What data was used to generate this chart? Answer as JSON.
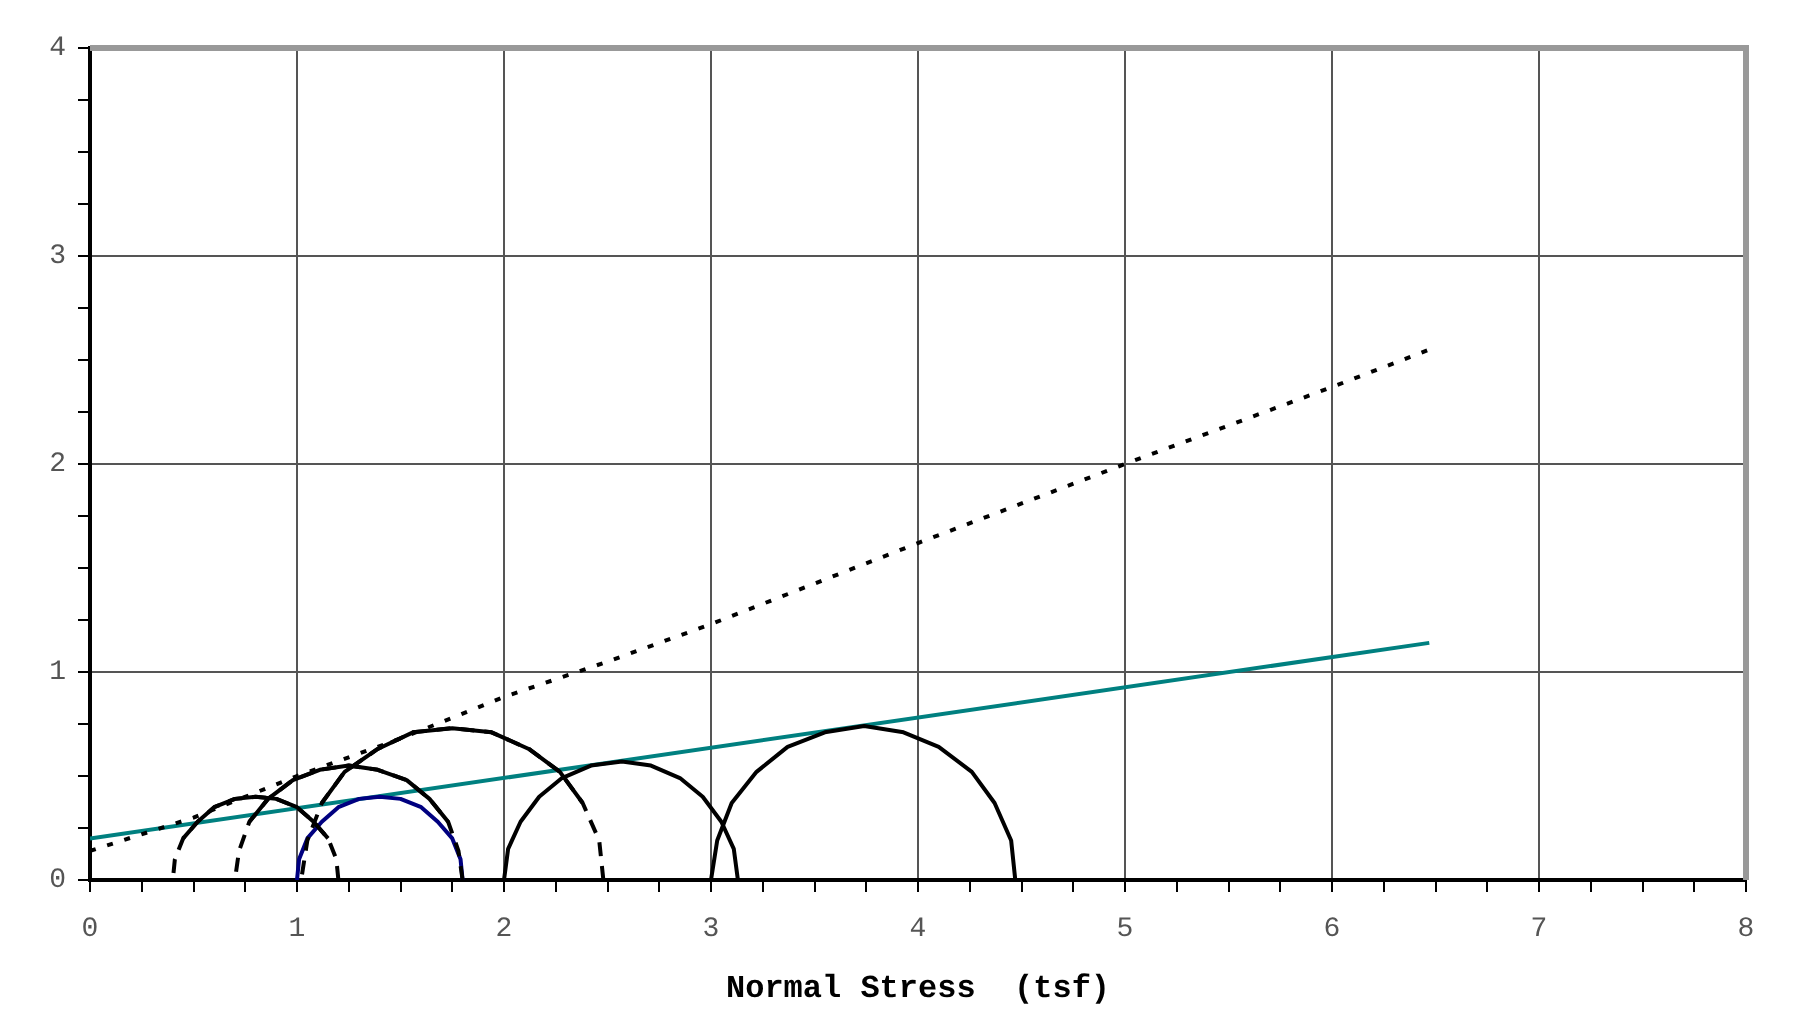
{
  "chart_data": {
    "type": "line",
    "xlabel": "Normal Stress  (tsf)",
    "xlim": [
      0,
      8
    ],
    "ylim": [
      0,
      4
    ],
    "xticks": [
      0,
      {
        "value": 0.25,
        "label": null
      },
      {
        "value": 0.5,
        "label": null
      },
      {
        "value": 0.75,
        "label": null
      },
      1,
      {
        "value": 1.25,
        "label": null
      },
      {
        "value": 1.5,
        "label": null
      },
      {
        "value": 1.75,
        "label": null
      },
      2,
      {
        "value": 2.25,
        "label": null
      },
      {
        "value": 2.5,
        "label": null
      },
      {
        "value": 2.75,
        "label": null
      },
      3,
      {
        "value": 3.25,
        "label": null
      },
      {
        "value": 3.5,
        "label": null
      },
      {
        "value": 3.75,
        "label": null
      },
      4,
      {
        "value": 4.25,
        "label": null
      },
      {
        "value": 4.5,
        "label": null
      },
      {
        "value": 4.75,
        "label": null
      },
      5,
      {
        "value": 5.25,
        "label": null
      },
      {
        "value": 5.5,
        "label": null
      },
      {
        "value": 5.75,
        "label": null
      },
      6,
      {
        "value": 6.25,
        "label": null
      },
      {
        "value": 6.5,
        "label": null
      },
      {
        "value": 6.75,
        "label": null
      },
      7,
      {
        "value": 7.25,
        "label": null
      },
      {
        "value": 7.5,
        "label": null
      },
      {
        "value": 7.75,
        "label": null
      },
      8
    ],
    "yticks": [
      0,
      {
        "value": 0.25,
        "label": null
      },
      {
        "value": 0.5,
        "label": null
      },
      {
        "value": 0.75,
        "label": null
      },
      1,
      {
        "value": 1.25,
        "label": null
      },
      {
        "value": 1.5,
        "label": null
      },
      {
        "value": 1.75,
        "label": null
      },
      2,
      {
        "value": 2.25,
        "label": null
      },
      {
        "value": 2.5,
        "label": null
      },
      {
        "value": 2.75,
        "label": null
      },
      3,
      {
        "value": 3.25,
        "label": null
      },
      {
        "value": 3.5,
        "label": null
      },
      {
        "value": 3.75,
        "label": null
      },
      4
    ],
    "grid": true,
    "legend": false,
    "marker": "none",
    "series": [
      {
        "color": "#000000",
        "line_style": "dashed",
        "x": [
          1.2,
          1.19,
          1.15,
          1.08,
          1.0,
          0.9,
          0.8,
          0.7,
          0.6,
          0.52,
          0.45,
          0.41,
          0.4
        ],
        "values": [
          0,
          0.1,
          0.2,
          0.28,
          0.35,
          0.39,
          0.4,
          0.39,
          0.35,
          0.28,
          0.2,
          0.1,
          0
        ]
      },
      {
        "color": "#000000",
        "line_style": "dashed",
        "x": [
          1.8,
          1.78,
          1.73,
          1.64,
          1.53,
          1.39,
          1.25,
          1.11,
          0.98,
          0.86,
          0.77,
          0.72,
          0.7
        ],
        "values": [
          0,
          0.14,
          0.28,
          0.39,
          0.48,
          0.53,
          0.55,
          0.53,
          0.48,
          0.39,
          0.28,
          0.14,
          0
        ]
      },
      {
        "color": "#000000",
        "line_style": "dashed",
        "x": [
          2.48,
          2.46,
          2.38,
          2.27,
          2.12,
          1.94,
          1.75,
          1.56,
          1.39,
          1.23,
          1.12,
          1.05,
          1.02
        ],
        "values": [
          0,
          0.19,
          0.37,
          0.52,
          0.63,
          0.71,
          0.73,
          0.71,
          0.63,
          0.52,
          0.37,
          0.19,
          0
        ]
      },
      {
        "color": "#000000",
        "line_style": "solid",
        "x": [
          1.15,
          1.08,
          1.0,
          0.9,
          0.8,
          0.7,
          0.6,
          0.52,
          0.45
        ],
        "values": [
          0.2,
          0.28,
          0.35,
          0.39,
          0.4,
          0.39,
          0.35,
          0.28,
          0.2
        ]
      },
      {
        "color": "#000000",
        "line_style": "solid",
        "x": [
          1.73,
          1.64,
          1.53,
          1.39,
          1.25,
          1.11,
          0.98,
          0.86,
          0.77
        ],
        "values": [
          0.28,
          0.39,
          0.48,
          0.53,
          0.55,
          0.53,
          0.48,
          0.39,
          0.28
        ]
      },
      {
        "color": "#000000",
        "line_style": "solid",
        "x": [
          2.38,
          2.27,
          2.12,
          1.94,
          1.75,
          1.56,
          1.39,
          1.23,
          1.12
        ],
        "values": [
          0.37,
          0.52,
          0.63,
          0.71,
          0.73,
          0.71,
          0.63,
          0.52,
          0.37
        ]
      },
      {
        "color": "#000080",
        "line_style": "solid",
        "x": [
          1.8,
          1.79,
          1.75,
          1.68,
          1.6,
          1.5,
          1.4,
          1.3,
          1.2,
          1.12,
          1.05,
          1.01,
          1.0
        ],
        "values": [
          0,
          0.1,
          0.2,
          0.28,
          0.35,
          0.39,
          0.4,
          0.39,
          0.35,
          0.28,
          0.2,
          0.1,
          0
        ]
      },
      {
        "color": "#000000",
        "line_style": "solid",
        "x": [
          3.13,
          3.11,
          3.05,
          2.96,
          2.85,
          2.71,
          2.57,
          2.42,
          2.28,
          2.17,
          2.08,
          2.02,
          2.0
        ],
        "values": [
          0,
          0.15,
          0.28,
          0.4,
          0.49,
          0.55,
          0.57,
          0.55,
          0.49,
          0.4,
          0.28,
          0.15,
          0
        ]
      },
      {
        "color": "#000000",
        "line_style": "solid",
        "x": [
          4.47,
          4.45,
          4.37,
          4.26,
          4.1,
          3.93,
          3.74,
          3.55,
          3.37,
          3.22,
          3.1,
          3.03,
          3.0
        ],
        "values": [
          0,
          0.19,
          0.37,
          0.52,
          0.64,
          0.71,
          0.74,
          0.71,
          0.64,
          0.52,
          0.37,
          0.19,
          0
        ]
      },
      {
        "color": "#000000",
        "line_style": "dotted",
        "x": [
          0,
          0.5,
          1,
          1.5,
          2,
          2.5,
          3,
          4,
          5,
          6,
          6.47
        ],
        "values": [
          0.14,
          0.3,
          0.5,
          0.68,
          0.88,
          1.05,
          1.23,
          1.62,
          2.0,
          2.37,
          2.55
        ]
      },
      {
        "color": "#008080",
        "line_style": "solid",
        "x": [
          0,
          6.47
        ],
        "values": [
          0.2,
          1.14
        ]
      }
    ]
  }
}
